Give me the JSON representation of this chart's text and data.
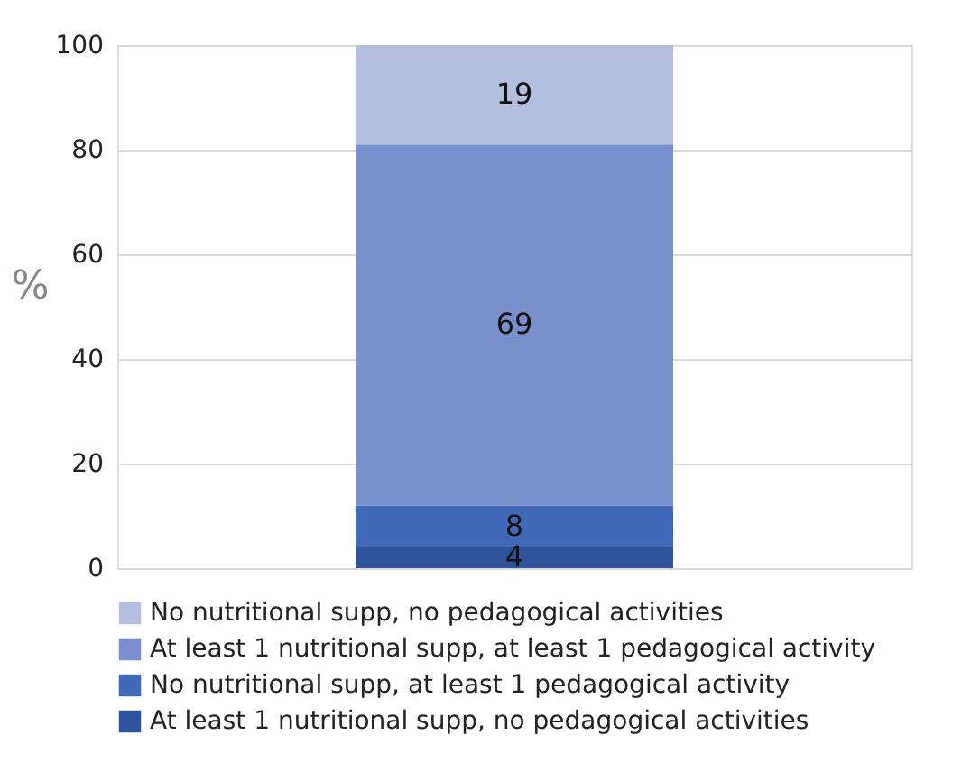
{
  "chart_data": {
    "type": "bar",
    "stacked": true,
    "categories": [
      null
    ],
    "ylabel": "%",
    "series": [
      {
        "name": "At least 1 nutritional supp, no pedagogical activities",
        "color": "#30549c",
        "values": [
          4
        ]
      },
      {
        "name": "No nutritional supp, at least 1 pedagogical activity",
        "color": "#4169b8",
        "values": [
          8
        ]
      },
      {
        "name": "At least 1 nutritional supp, at least 1 pedagogical activity",
        "color": "#7a90cc",
        "values": [
          69
        ]
      },
      {
        "name": "No nutritional supp, no pedagogical activities",
        "color": "#b4bfe0",
        "values": [
          19
        ]
      }
    ],
    "ylim": [
      0,
      100
    ],
    "yticks": [
      0,
      20,
      40,
      60,
      80,
      100
    ],
    "grid": "y",
    "legend": "bottom",
    "data_labels": true,
    "tick_labels": "y"
  }
}
